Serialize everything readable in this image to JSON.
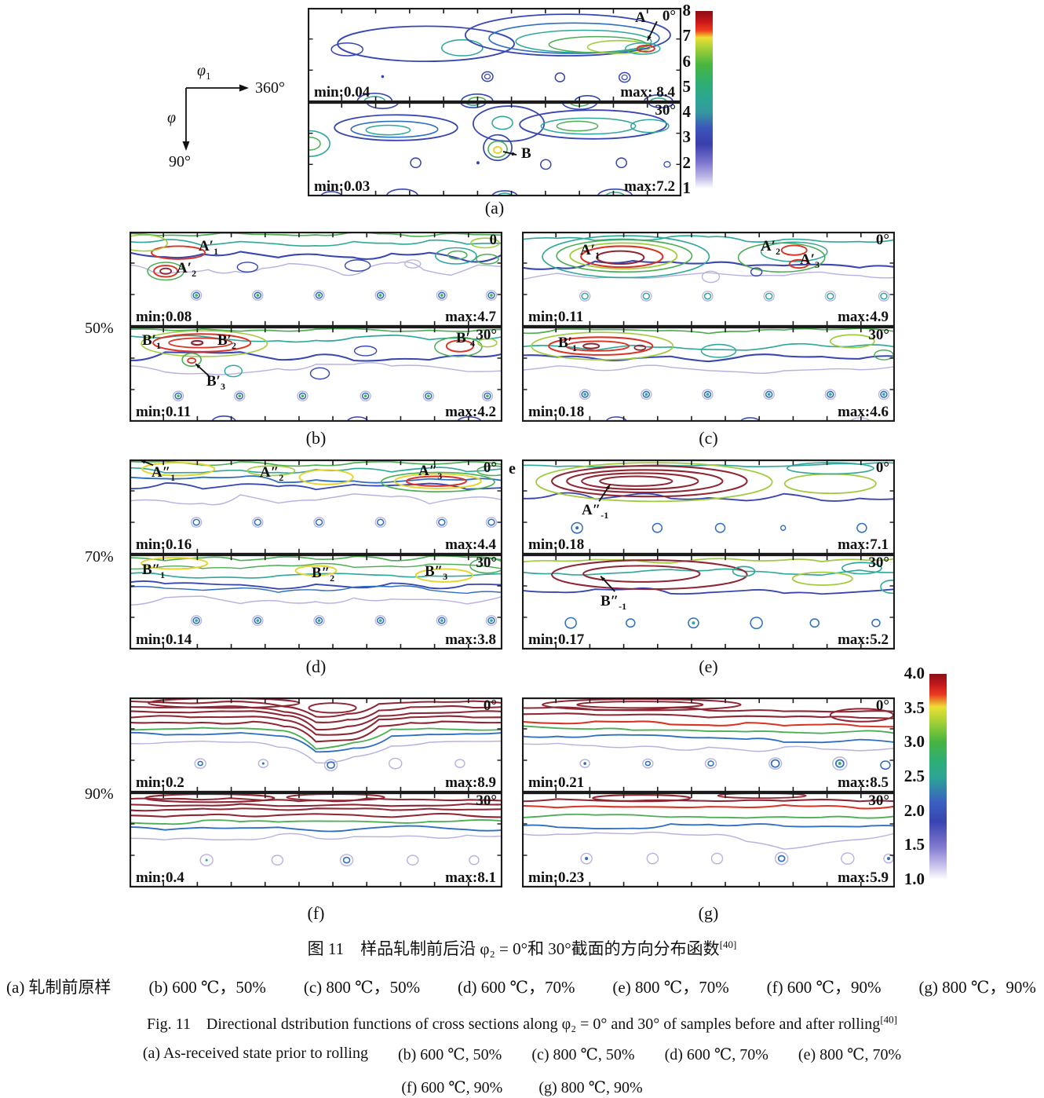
{
  "axis_legend": {
    "phi1": {
      "base": "φ",
      "sub": "1"
    },
    "phi1_end": "360°",
    "phi": {
      "base": "φ",
      "sub": ""
    },
    "phi_end": "90°"
  },
  "colorbar_top": {
    "ticks": [
      "8",
      "7",
      "6",
      "5",
      "4",
      "3",
      "2",
      "1"
    ]
  },
  "colorbar_bottom": {
    "ticks": [
      "4.0",
      "3.5",
      "3.0",
      "2.5",
      "2.0",
      "1.5",
      "1.0"
    ]
  },
  "rows": {
    "r50": "50%",
    "r70": "70%",
    "r90": "90%"
  },
  "panels": {
    "a": {
      "letter": "(a)",
      "subplots": [
        {
          "section": "0°",
          "min": "min:0.04",
          "max": "max: 8.4",
          "annotations": [
            {
              "base": "A",
              "sub": ""
            }
          ]
        },
        {
          "section": "30°",
          "min": "min:0.03",
          "max": "max:7.2",
          "annotations": [
            {
              "base": "B",
              "sub": ""
            }
          ]
        }
      ]
    },
    "b": {
      "letter": "(b)",
      "subplots": [
        {
          "section": "0",
          "min": "min:0.08",
          "max": "max:4.7",
          "annotations": [
            {
              "base": "A′",
              "sub": "1"
            },
            {
              "base": "A′",
              "sub": "2"
            }
          ]
        },
        {
          "section": "30°",
          "min": "min:0.11",
          "max": "max:4.2",
          "annotations": [
            {
              "base": "B′",
              "sub": "1"
            },
            {
              "base": "B′",
              "sub": "2"
            },
            {
              "base": "B′",
              "sub": "4"
            },
            {
              "base": "B′",
              "sub": "3"
            }
          ]
        }
      ]
    },
    "c": {
      "letter": "(c)",
      "subplots": [
        {
          "section": "0°",
          "min": "min:0.11",
          "max": "max:4.9",
          "annotations": [
            {
              "base": "A′",
              "sub": "1"
            },
            {
              "base": "A′",
              "sub": "2"
            },
            {
              "base": "A′",
              "sub": "3"
            }
          ]
        },
        {
          "section": "30°",
          "min": "min:0.18",
          "max": "max:4.6",
          "annotations": [
            {
              "base": "B′",
              "sub": "1"
            }
          ]
        }
      ]
    },
    "d": {
      "letter": "(d)",
      "subplots": [
        {
          "section": "0°",
          "min": "min:0.16",
          "max": "max:4.4",
          "annotations": [
            {
              "base": "A″",
              "sub": "1"
            },
            {
              "base": "A″",
              "sub": "2"
            },
            {
              "base": "A″",
              "sub": "3"
            }
          ]
        },
        {
          "section": "30°",
          "min": "min:0.14",
          "max": "max:3.8",
          "annotations": [
            {
              "base": "B″",
              "sub": "1"
            },
            {
              "base": "B″",
              "sub": "2"
            },
            {
              "base": "B″",
              "sub": "3"
            }
          ]
        }
      ]
    },
    "e": {
      "letter": "(e)",
      "stray": "e",
      "subplots": [
        {
          "section": "0°",
          "min": "min:0.18",
          "max": "max:7.1",
          "annotations": [
            {
              "base": "A″",
              "sub": "-1"
            }
          ]
        },
        {
          "section": "30°",
          "min": "min:0.17",
          "max": "max:5.2",
          "annotations": [
            {
              "base": "B″",
              "sub": "-1"
            }
          ]
        }
      ]
    },
    "f": {
      "letter": "(f)",
      "subplots": [
        {
          "section": "0°",
          "min": "min:0.2",
          "max": "max:8.9",
          "annotations": []
        },
        {
          "section": "30°",
          "min": "min:0.4",
          "max": "max:8.1",
          "annotations": []
        }
      ]
    },
    "g": {
      "letter": "(g)",
      "subplots": [
        {
          "section": "0°",
          "min": "min:0.21",
          "max": "max:8.5",
          "annotations": []
        },
        {
          "section": "30°",
          "min": "min:0.23",
          "max": "max:5.9",
          "annotations": []
        }
      ]
    }
  },
  "caption": {
    "zh_title": "图 11　样品轧制前后沿 φ₂ = 0°和 30°截面的方向分布函数",
    "zh_ref": "[40]",
    "zh_items": [
      "(a) 轧制前原样",
      "(b) 600 ℃，50%",
      "(c) 800 ℃，50%",
      "(d) 600 ℃，70%",
      "(e) 800 ℃，70%",
      "(f) 600 ℃，90%",
      "(g) 800 ℃，90%"
    ],
    "en_title": "Fig. 11　Directional dstribution functions of cross sections along φ₂ = 0° and 30° of samples before and after rolling",
    "en_ref": "[40]",
    "en_items_line1": [
      "(a) As-received state prior to rolling",
      "(b) 600 ℃, 50%",
      "(c) 800 ℃, 50%",
      "(d) 600 ℃, 70%",
      "(e) 800 ℃, 70%"
    ],
    "en_items_line2": [
      "(f) 600 ℃, 90%",
      "(g) 800 ℃, 90%"
    ]
  }
}
